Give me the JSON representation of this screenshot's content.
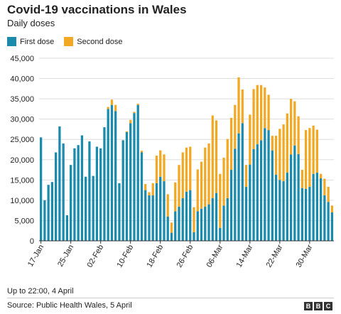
{
  "header": {
    "title": "Covid-19 vaccinations in Wales",
    "subtitle": "Daily doses"
  },
  "footer": {
    "note": "Up to 22:00, 4 April",
    "source": "Source: Public Health Wales, 5 April",
    "logo": "BBC"
  },
  "colors": {
    "first_dose": "#1a8aad",
    "second_dose": "#f2a823",
    "grid": "#dddddd",
    "baseline": "#333333"
  },
  "chart_data": {
    "type": "bar",
    "stacked": true,
    "title": "Covid-19 vaccinations in Wales",
    "subtitle": "Daily doses",
    "ylim": [
      0,
      45000
    ],
    "yticks": [
      0,
      5000,
      10000,
      15000,
      20000,
      25000,
      30000,
      35000,
      40000,
      45000
    ],
    "ytick_labels": [
      "0",
      "5,000",
      "10,000",
      "15,000",
      "20,000",
      "25,000",
      "30,000",
      "35,000",
      "40,000",
      "45,000"
    ],
    "xtick_labels": [
      "17-Jan",
      "25-Jan",
      "02-Feb",
      "10-Feb",
      "18-Feb",
      "26-Feb",
      "06-Mar",
      "14-Mar",
      "22-Mar",
      "30-Mar"
    ],
    "xtick_every": 8,
    "grid": true,
    "legend_position": "top-left",
    "series": [
      {
        "name": "First dose",
        "values": [
          25500,
          10000,
          13800,
          14500,
          21800,
          28200,
          24000,
          6300,
          18700,
          22800,
          23600,
          26000,
          15800,
          24500,
          16000,
          23200,
          22800,
          28000,
          32500,
          33500,
          32000,
          14200,
          24800,
          26800,
          29000,
          31500,
          33500,
          21800,
          12500,
          11200,
          11200,
          14200,
          15800,
          14700,
          6000,
          2000,
          7300,
          8400,
          10500,
          12100,
          12500,
          2100,
          7300,
          7900,
          8400,
          9000,
          10500,
          11800,
          3200,
          8700,
          10500,
          17500,
          22700,
          26500,
          29000,
          13300,
          18800,
          22600,
          23800,
          24800,
          27800,
          27300,
          22300,
          16300,
          15000,
          14700,
          16800,
          21300,
          23500,
          21400,
          13000,
          12800,
          13300,
          16500,
          16800,
          15400,
          11200,
          9600,
          7000
        ],
        "totals": [
          25500,
          10000,
          13800,
          14500,
          21800,
          28200,
          24000,
          6300,
          18700,
          22800,
          23600,
          26000,
          15800,
          24500,
          16000,
          23200,
          22800,
          28000,
          33000,
          34800,
          33500,
          14200,
          24800,
          27000,
          29800,
          31800,
          33800,
          22200,
          14000,
          12000,
          14200,
          21000,
          22300,
          21300,
          11500,
          4500,
          14400,
          18700,
          21800,
          23000,
          23200,
          8300,
          17600,
          19500,
          23000,
          24000,
          30900,
          29700,
          16500,
          20500,
          25100,
          30300,
          33500,
          40300,
          37300,
          18700,
          31100,
          37400,
          38400,
          38400,
          37800,
          36000,
          25900,
          25900,
          27600,
          28700,
          31400,
          35000,
          34400,
          30700,
          17500,
          27300,
          27800,
          28400,
          27400,
          16500,
          15300,
          13300,
          8700
        ]
      },
      {
        "name": "Second dose",
        "values": [
          0,
          0,
          0,
          0,
          0,
          0,
          0,
          0,
          0,
          0,
          0,
          0,
          0,
          0,
          0,
          0,
          0,
          0,
          500,
          1300,
          1500,
          0,
          0,
          200,
          800,
          300,
          300,
          400,
          1500,
          800,
          3000,
          6800,
          6500,
          6600,
          5500,
          2500,
          7100,
          10300,
          11300,
          10900,
          10700,
          6200,
          10300,
          11600,
          14600,
          15000,
          20400,
          17900,
          13300,
          11800,
          14600,
          12800,
          10800,
          13800,
          8300,
          5400,
          12300,
          14800,
          14600,
          13600,
          10000,
          8700,
          3600,
          9600,
          12600,
          14000,
          14600,
          13700,
          10900,
          9300,
          4500,
          14500,
          14500,
          11900,
          10600,
          1100,
          4100,
          3700,
          1700
        ]
      }
    ]
  }
}
